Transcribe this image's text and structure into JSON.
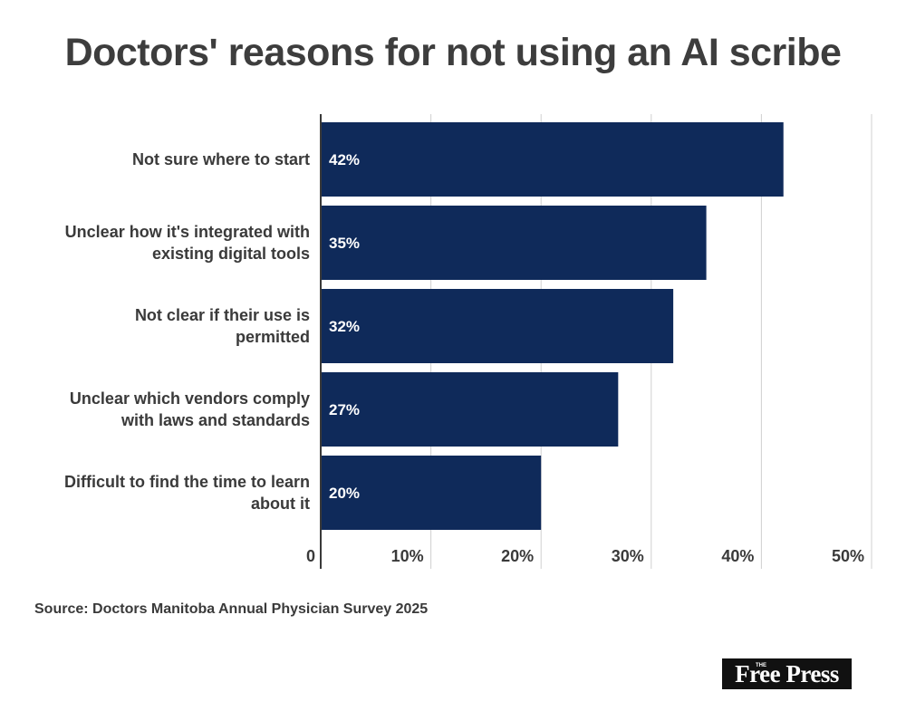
{
  "title": "Doctors' reasons for not using an AI scribe",
  "source": "Source: Doctors Manitoba Annual Physician Survey 2025",
  "logo": {
    "the": "THE",
    "name": "Free Press"
  },
  "colors": {
    "bar": "#0f2a5a",
    "grid": "#d0d0d0",
    "axis": "#3a3a3a",
    "text": "#3a3a3a"
  },
  "chart_data": {
    "type": "bar",
    "orientation": "horizontal",
    "categories": [
      [
        "Not sure where to start"
      ],
      [
        "Unclear how it's integrated with",
        "existing digital tools"
      ],
      [
        "Not clear if their use is",
        "permitted"
      ],
      [
        "Unclear which vendors comply",
        "with laws and standards"
      ],
      [
        "Difficult to find the time to learn",
        "about it"
      ]
    ],
    "values": [
      42,
      35,
      32,
      27,
      20
    ],
    "data_labels": [
      "42%",
      "35%",
      "32%",
      "27%",
      "20%"
    ],
    "xlim": [
      0,
      50
    ],
    "xticks": [
      0,
      10,
      20,
      30,
      40,
      50
    ],
    "xtick_labels": [
      "0",
      "10%",
      "20%",
      "30%",
      "40%",
      "50%"
    ],
    "grid": true,
    "legend": "none"
  }
}
